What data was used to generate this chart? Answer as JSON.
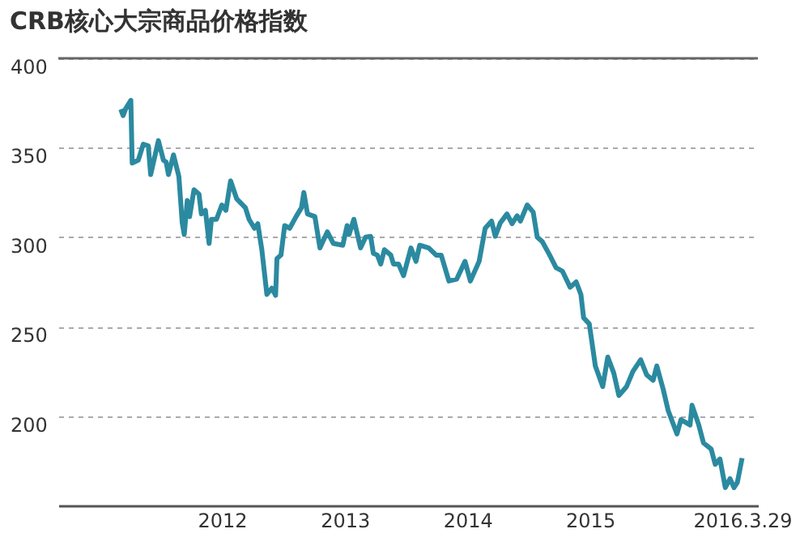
{
  "chart_data": {
    "type": "line",
    "title": "CRB核心大宗商品价格指数",
    "x": [
      "2011-03-06",
      "2011-03-13",
      "2011-03-21",
      "2011-04-05",
      "2011-04-09",
      "2011-04-27",
      "2011-05-12",
      "2011-05-27",
      "2011-06-03",
      "2011-06-26",
      "2011-07-11",
      "2011-07-19",
      "2011-07-26",
      "2011-08-10",
      "2011-08-26",
      "2011-09-05",
      "2011-09-11",
      "2011-09-20",
      "2011-09-27",
      "2011-10-10",
      "2011-10-25",
      "2011-11-01",
      "2011-11-13",
      "2011-11-24",
      "2011-12-01",
      "2011-12-16",
      "2012-01-01",
      "2012-01-13",
      "2012-01-27",
      "2012-02-14",
      "2012-03-11",
      "2012-03-22",
      "2012-04-07",
      "2012-04-17",
      "2012-04-29",
      "2012-05-14",
      "2012-05-29",
      "2012-06-09",
      "2012-06-13",
      "2012-06-25",
      "2012-07-06",
      "2012-07-21",
      "2012-08-09",
      "2012-08-25",
      "2012-09-01",
      "2012-09-12",
      "2012-10-04",
      "2012-10-19",
      "2012-11-10",
      "2012-11-28",
      "2012-12-26",
      "2013-01-08",
      "2013-01-14",
      "2013-01-28",
      "2013-02-17",
      "2013-03-04",
      "2013-03-19",
      "2013-03-27",
      "2013-04-08",
      "2013-04-18",
      "2013-04-29",
      "2013-05-18",
      "2013-05-26",
      "2013-06-10",
      "2013-06-25",
      "2013-07-17",
      "2013-08-01",
      "2013-08-12",
      "2013-09-08",
      "2013-09-30",
      "2013-10-15",
      "2013-11-07",
      "2013-11-30",
      "2013-12-25",
      "2014-01-10",
      "2014-02-05",
      "2014-02-23",
      "2014-03-14",
      "2014-03-25",
      "2014-04-09",
      "2014-04-29",
      "2014-05-14",
      "2014-05-29",
      "2014-06-08",
      "2014-06-28",
      "2014-07-16",
      "2014-07-28",
      "2014-08-12",
      "2014-09-03",
      "2014-09-22",
      "2014-10-11",
      "2014-11-03",
      "2014-11-21",
      "2014-12-05",
      "2014-12-13",
      "2014-12-30",
      "2015-01-17",
      "2015-02-08",
      "2015-02-23",
      "2015-03-13",
      "2015-03-28",
      "2015-04-20",
      "2015-05-09",
      "2015-06-01",
      "2015-06-19",
      "2015-07-08",
      "2015-07-19",
      "2015-08-07",
      "2015-08-22",
      "2015-09-17",
      "2015-09-29",
      "2015-10-26",
      "2015-11-01",
      "2015-11-21",
      "2015-12-05",
      "2015-12-28",
      "2016-01-09",
      "2016-01-23",
      "2016-02-08",
      "2016-02-22",
      "2016-03-05",
      "2016-03-15",
      "2016-03-29"
    ],
    "series": [
      {
        "color": "#2b8aa0",
        "values": [
          371.5,
          368,
          372,
          376.5,
          341.5,
          343,
          352,
          351,
          335,
          354,
          343,
          342,
          335,
          346,
          334,
          308,
          301.5,
          320.5,
          311.5,
          326.5,
          324,
          313,
          315,
          296.5,
          310,
          310,
          318,
          315,
          331.5,
          321.5,
          316.5,
          310,
          305,
          307.5,
          293,
          268,
          271.5,
          267.5,
          288,
          290,
          306.5,
          305,
          311.5,
          316.5,
          325,
          313,
          311.5,
          294,
          303,
          296.5,
          295.5,
          306.5,
          301.5,
          310,
          294,
          300,
          300.5,
          291,
          290,
          285,
          293,
          290,
          285,
          285,
          278.5,
          294,
          286.5,
          295.5,
          294,
          290,
          290,
          275.5,
          276.5,
          286.5,
          275.5,
          286.5,
          305,
          309,
          300.5,
          308,
          313,
          307.5,
          312,
          309,
          318,
          314,
          300,
          297.5,
          290,
          283,
          281,
          272,
          275,
          268,
          255,
          251.5,
          228,
          216.5,
          233,
          224,
          211.5,
          216.5,
          225,
          231.5,
          223,
          220,
          228,
          215,
          203,
          190,
          198,
          195,
          206,
          195,
          185,
          181.5,
          173,
          176,
          160,
          165,
          160,
          163,
          176.5
        ]
      }
    ],
    "xlim": [
      "2010-09-01",
      "2016-05-15"
    ],
    "xticks": [
      {
        "value": "2012-01-01",
        "label": "2012"
      },
      {
        "value": "2013-01-01",
        "label": "2013"
      },
      {
        "value": "2014-01-01",
        "label": "2014"
      },
      {
        "value": "2015-01-01",
        "label": "2015"
      },
      {
        "value": "2016-03-29",
        "label": "2016.3.29"
      }
    ],
    "ylim": [
      150,
      400
    ],
    "yticks": [
      200,
      250,
      300,
      350,
      400
    ],
    "grid": "y",
    "line_style": "solid",
    "marker": "none"
  }
}
